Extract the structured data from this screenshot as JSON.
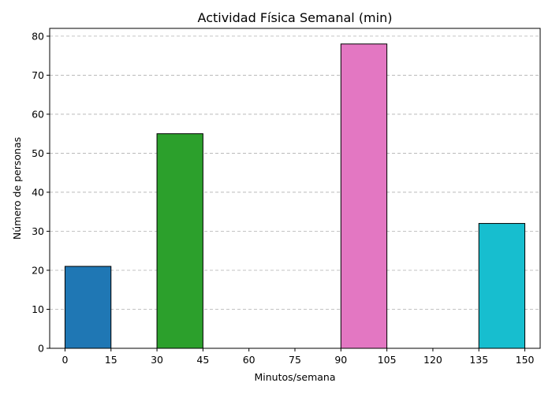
{
  "chart_data": {
    "type": "bar",
    "title": "Actividad Física Semanal (min)",
    "xlabel": "Minutos/semana",
    "ylabel": "Número de personas",
    "xlim": [
      -5,
      155
    ],
    "ylim": [
      0,
      82
    ],
    "xticks": [
      0,
      15,
      30,
      45,
      60,
      75,
      90,
      105,
      120,
      135,
      150
    ],
    "yticks": [
      0,
      10,
      20,
      30,
      40,
      50,
      60,
      70,
      80
    ],
    "grid": "y-dashed",
    "bars": [
      {
        "x0": 0,
        "x1": 15,
        "value": 21,
        "color": "#1f77b4"
      },
      {
        "x0": 30,
        "x1": 45,
        "value": 55,
        "color": "#2ca02c"
      },
      {
        "x0": 90,
        "x1": 105,
        "value": 78,
        "color": "#e377c2"
      },
      {
        "x0": 135,
        "x1": 150,
        "value": 32,
        "color": "#17becf"
      }
    ]
  }
}
